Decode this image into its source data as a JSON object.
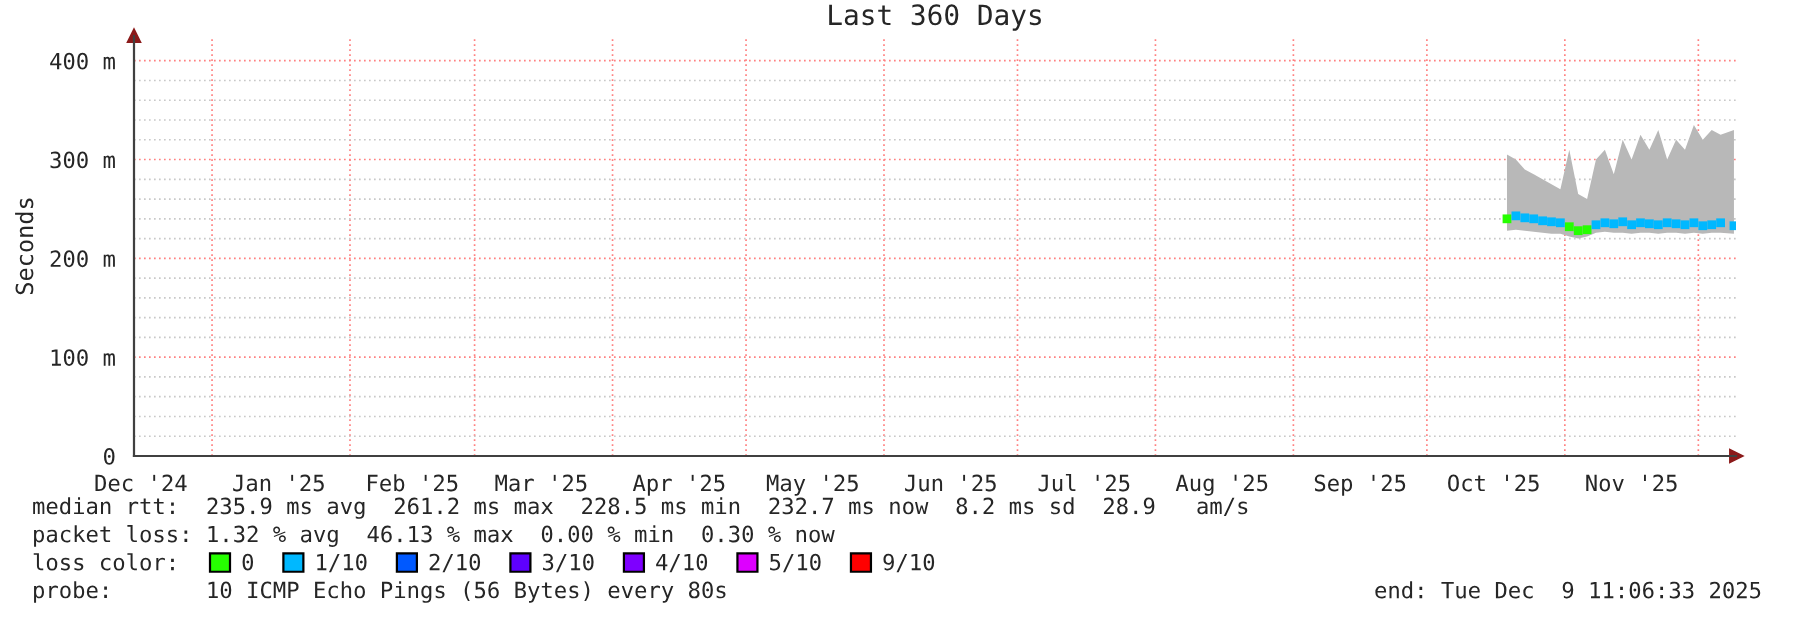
{
  "chart_data": {
    "type": "scatter",
    "marker": "square",
    "title": "Last 360 Days",
    "ylabel": "Seconds",
    "xlim": [
      "2024-12-14T11:06",
      "2025-12-09T11:06"
    ],
    "xticks": [
      {
        "value": "2024-12-16",
        "label": "Dec '24"
      },
      {
        "value": "2025-01-01",
        "label": null
      },
      {
        "value": "2025-01-16",
        "label": "Jan '25"
      },
      {
        "value": "2025-02-01",
        "label": null
      },
      {
        "value": "2025-02-15",
        "label": "Feb '25"
      },
      {
        "value": "2025-03-01",
        "label": null
      },
      {
        "value": "2025-03-16",
        "label": "Mar '25"
      },
      {
        "value": "2025-04-01",
        "label": null
      },
      {
        "value": "2025-04-16",
        "label": "Apr '25"
      },
      {
        "value": "2025-05-01",
        "label": null
      },
      {
        "value": "2025-05-16",
        "label": "May '25"
      },
      {
        "value": "2025-06-01",
        "label": null
      },
      {
        "value": "2025-06-16",
        "label": "Jun '25"
      },
      {
        "value": "2025-07-01",
        "label": null
      },
      {
        "value": "2025-07-16",
        "label": "Jul '25"
      },
      {
        "value": "2025-08-01",
        "label": null
      },
      {
        "value": "2025-08-16",
        "label": "Aug '25"
      },
      {
        "value": "2025-09-01",
        "label": null
      },
      {
        "value": "2025-09-16",
        "label": "Sep '25"
      },
      {
        "value": "2025-10-01",
        "label": null
      },
      {
        "value": "2025-10-16",
        "label": "Oct '25"
      },
      {
        "value": "2025-11-01",
        "label": null
      },
      {
        "value": "2025-11-16",
        "label": "Nov '25"
      },
      {
        "value": "2025-12-01",
        "label": null
      }
    ],
    "ylim": [
      0,
      425
    ],
    "yticks": [
      {
        "value": 0,
        "label": "0"
      },
      {
        "value": 20,
        "label": null
      },
      {
        "value": 40,
        "label": null
      },
      {
        "value": 60,
        "label": null
      },
      {
        "value": 80,
        "label": null
      },
      {
        "value": 100,
        "label": "100 m"
      },
      {
        "value": 120,
        "label": null
      },
      {
        "value": 140,
        "label": null
      },
      {
        "value": 160,
        "label": null
      },
      {
        "value": 180,
        "label": null
      },
      {
        "value": 200,
        "label": "200 m"
      },
      {
        "value": 220,
        "label": null
      },
      {
        "value": 240,
        "label": null
      },
      {
        "value": 260,
        "label": null
      },
      {
        "value": 280,
        "label": null
      },
      {
        "value": 300,
        "label": "300 m"
      },
      {
        "value": 320,
        "label": null
      },
      {
        "value": 340,
        "label": null
      },
      {
        "value": 360,
        "label": null
      },
      {
        "value": 380,
        "label": null
      },
      {
        "value": 400,
        "label": "400 m"
      }
    ],
    "grid": true,
    "legend": "bottom",
    "legend_title": "loss color:",
    "x": [
      "2025-10-19",
      "2025-10-21",
      "2025-10-23",
      "2025-10-25",
      "2025-10-27",
      "2025-10-29",
      "2025-10-31",
      "2025-11-02",
      "2025-11-04",
      "2025-11-06",
      "2025-11-08",
      "2025-11-10",
      "2025-11-12",
      "2025-11-14",
      "2025-11-16",
      "2025-11-18",
      "2025-11-20",
      "2025-11-22",
      "2025-11-24",
      "2025-11-26",
      "2025-11-28",
      "2025-11-30",
      "2025-12-02",
      "2025-12-04",
      "2025-12-06",
      "2025-12-09"
    ],
    "series": [
      {
        "name": "0",
        "color": "#26ff00",
        "values": [
          240,
          null,
          null,
          null,
          null,
          null,
          null,
          232,
          228,
          229,
          null,
          null,
          null,
          null,
          null,
          null,
          null,
          null,
          null,
          null,
          null,
          null,
          null,
          null,
          null,
          null
        ]
      },
      {
        "name": "1/10",
        "color": "#00b8ff",
        "values": [
          null,
          243,
          241,
          240,
          238,
          237,
          236,
          null,
          null,
          null,
          234,
          236,
          235,
          237,
          234,
          236,
          235,
          234,
          236,
          235,
          234,
          236,
          233,
          234,
          236,
          233
        ],
        "lower": [
          228,
          229,
          228,
          227,
          226,
          225,
          225,
          222,
          220,
          222,
          226,
          227,
          226,
          226,
          225,
          226,
          226,
          225,
          226,
          226,
          225,
          226,
          225,
          226,
          226,
          225
        ],
        "upper": [
          305,
          300,
          290,
          285,
          280,
          275,
          270,
          310,
          265,
          260,
          300,
          310,
          285,
          320,
          300,
          325,
          310,
          330,
          300,
          320,
          310,
          335,
          320,
          330,
          325,
          330
        ]
      },
      {
        "name": "2/10",
        "color": "#0059ff",
        "values": [
          null,
          null,
          null,
          null,
          null,
          null,
          null,
          null,
          null,
          null,
          null,
          null,
          null,
          null,
          null,
          null,
          null,
          null,
          null,
          null,
          null,
          null,
          null,
          null,
          null,
          null
        ]
      },
      {
        "name": "3/10",
        "color": "#5e00ff",
        "values": [
          null,
          null,
          null,
          null,
          null,
          null,
          null,
          null,
          null,
          null,
          null,
          null,
          null,
          null,
          null,
          null,
          null,
          null,
          null,
          null,
          null,
          null,
          null,
          null,
          null,
          null
        ]
      },
      {
        "name": "4/10",
        "color": "#7e00ff",
        "values": [
          null,
          null,
          null,
          null,
          null,
          null,
          null,
          null,
          null,
          null,
          null,
          null,
          null,
          null,
          null,
          null,
          null,
          null,
          null,
          null,
          null,
          null,
          null,
          null,
          null,
          null
        ]
      },
      {
        "name": "5/10",
        "color": "#dd00ff",
        "values": [
          null,
          null,
          null,
          null,
          null,
          null,
          null,
          null,
          null,
          null,
          null,
          null,
          null,
          null,
          null,
          null,
          null,
          null,
          null,
          null,
          null,
          null,
          null,
          null,
          null,
          null
        ]
      },
      {
        "name": "9/10",
        "color": "#ff0000",
        "values": [
          null,
          null,
          null,
          null,
          null,
          null,
          null,
          null,
          null,
          null,
          null,
          null,
          null,
          null,
          null,
          null,
          null,
          null,
          null,
          null,
          null,
          null,
          null,
          null,
          null,
          null
        ]
      }
    ],
    "annotations": [
      "median rtt:  235.9 ms avg  261.2 ms max  228.5 ms min  232.7 ms now  8.2 ms sd  28.9   am/s",
      "packet loss: 1.32 % avg  46.13 % max  0.00 % min  0.30 % now",
      "probe:       10 ICMP Echo Pings (56 Bytes) every 80s",
      "end: Tue Dec  9 11:06:33 2025"
    ]
  }
}
